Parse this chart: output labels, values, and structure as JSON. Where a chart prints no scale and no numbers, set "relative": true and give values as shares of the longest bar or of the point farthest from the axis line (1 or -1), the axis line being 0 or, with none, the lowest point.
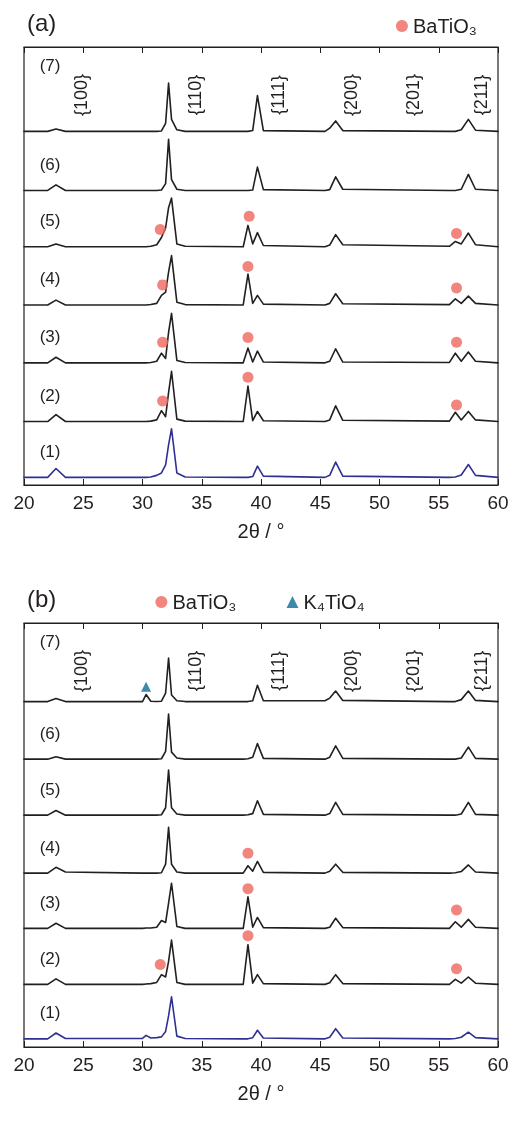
{
  "chart_data": [
    {
      "type": "line",
      "title": "(a)",
      "xlabel": "2θ / °",
      "relative": true,
      "xlim": [
        20,
        60
      ],
      "xticks": [
        20,
        25,
        30,
        35,
        40,
        45,
        50,
        55,
        60
      ],
      "tick_labels": "x",
      "grid": false,
      "legend": "top right",
      "marker": "none",
      "line_style": "solid",
      "x": [
        20,
        22.0,
        22.7,
        23.5,
        30.0,
        30.3,
        30.7,
        31.2,
        31.6,
        31.95,
        32.2,
        32.45,
        32.9,
        33.6,
        38.5,
        38.9,
        39.3,
        39.7,
        40.2,
        45.4,
        45.8,
        46.3,
        46.9,
        55.9,
        56.4,
        56.9,
        57.5,
        58.1,
        60
      ],
      "series": [
        {
          "color": "#231f20",
          "values": [
            0.88,
            0.88,
            0.886,
            0.88,
            0.88,
            0.88,
            0.88,
            0.88,
            0.881,
            0.9,
            1.0,
            0.91,
            0.884,
            0.88,
            0.88,
            0.88,
            0.882,
            0.969,
            0.882,
            0.88,
            0.888,
            0.906,
            0.882,
            0.88,
            0.88,
            0.884,
            0.91,
            0.883,
            0.88
          ]
        },
        {
          "color": "#231f20",
          "values": [
            0.733,
            0.733,
            0.747,
            0.733,
            0.733,
            0.733,
            0.733,
            0.733,
            0.734,
            0.75,
            0.86,
            0.76,
            0.736,
            0.733,
            0.733,
            0.733,
            0.734,
            0.791,
            0.735,
            0.733,
            0.735,
            0.767,
            0.736,
            0.733,
            0.733,
            0.736,
            0.773,
            0.736,
            0.733
          ]
        },
        {
          "color": "#231f20",
          "values": [
            0.593,
            0.593,
            0.6,
            0.593,
            0.593,
            0.593,
            0.594,
            0.598,
            0.616,
            0.64,
            0.69,
            0.714,
            0.6,
            0.594,
            0.593,
            0.646,
            0.6,
            0.628,
            0.596,
            0.593,
            0.597,
            0.623,
            0.598,
            0.594,
            0.606,
            0.6,
            0.627,
            0.598,
            0.593
          ]
        },
        {
          "color": "#231f20",
          "values": [
            0.448,
            0.448,
            0.46,
            0.448,
            0.448,
            0.448,
            0.449,
            0.452,
            0.472,
            0.48,
            0.53,
            0.571,
            0.455,
            0.449,
            0.448,
            0.525,
            0.452,
            0.472,
            0.45,
            0.448,
            0.452,
            0.476,
            0.451,
            0.449,
            0.463,
            0.452,
            0.47,
            0.452,
            0.448
          ]
        },
        {
          "color": "#231f20",
          "values": [
            0.304,
            0.304,
            0.318,
            0.304,
            0.304,
            0.304,
            0.305,
            0.308,
            0.328,
            0.315,
            0.38,
            0.427,
            0.31,
            0.305,
            0.304,
            0.341,
            0.306,
            0.333,
            0.306,
            0.304,
            0.308,
            0.339,
            0.306,
            0.305,
            0.328,
            0.308,
            0.331,
            0.308,
            0.304
          ]
        },
        {
          "color": "#231f20",
          "values": [
            0.158,
            0.158,
            0.175,
            0.158,
            0.158,
            0.158,
            0.159,
            0.162,
            0.185,
            0.17,
            0.23,
            0.283,
            0.164,
            0.159,
            0.158,
            0.246,
            0.16,
            0.183,
            0.16,
            0.158,
            0.162,
            0.197,
            0.161,
            0.159,
            0.181,
            0.162,
            0.183,
            0.162,
            0.158
          ]
        },
        {
          "color": "#2e3192",
          "values": [
            0.019,
            0.019,
            0.041,
            0.019,
            0.019,
            0.019,
            0.02,
            0.024,
            0.03,
            0.05,
            0.1,
            0.14,
            0.03,
            0.02,
            0.019,
            0.019,
            0.021,
            0.047,
            0.022,
            0.019,
            0.024,
            0.057,
            0.022,
            0.019,
            0.02,
            0.025,
            0.051,
            0.024,
            0.019
          ]
        },
        {
          "type": "scatter",
          "name": "BaTiO₃",
          "color": "#f0675f",
          "marker": "circle",
          "x": [
            31.5,
            39.0,
            56.5,
            31.7,
            38.9,
            56.5,
            31.7,
            38.9,
            56.5,
            31.7,
            38.9,
            56.5
          ],
          "values": [
            0.636,
            0.669,
            0.626,
            0.498,
            0.544,
            0.49,
            0.355,
            0.367,
            0.355,
            0.209,
            0.268,
            0.199
          ]
        }
      ],
      "annotations": [
        "(7)",
        "(6)",
        "(5)",
        "(4)",
        "(3)",
        "(2)",
        "(1)",
        "{100}",
        "{110}",
        "{111}",
        "{200}",
        "{201}",
        "{211}"
      ]
    },
    {
      "type": "line",
      "title": "(b)",
      "xlabel": "2θ / °",
      "relative": true,
      "xlim": [
        20,
        60
      ],
      "xticks": [
        20,
        25,
        30,
        35,
        40,
        45,
        50,
        55,
        60
      ],
      "tick_labels": "x",
      "grid": false,
      "legend": "top",
      "marker": "none",
      "line_style": "solid",
      "x": [
        20,
        22.0,
        22.7,
        23.5,
        30.0,
        30.3,
        30.7,
        31.2,
        31.6,
        31.95,
        32.2,
        32.45,
        32.9,
        33.6,
        38.5,
        38.9,
        39.3,
        39.7,
        40.2,
        45.4,
        45.8,
        46.3,
        46.9,
        55.9,
        56.4,
        56.9,
        57.5,
        58.1,
        60
      ],
      "series": [
        {
          "color": "#231f20",
          "values": [
            0.888,
            0.888,
            0.896,
            0.888,
            0.888,
            0.906,
            0.889,
            0.888,
            0.889,
            0.91,
            1.0,
            0.905,
            0.89,
            0.888,
            0.888,
            0.888,
            0.89,
            0.93,
            0.89,
            0.89,
            0.897,
            0.915,
            0.891,
            0.888,
            0.888,
            0.893,
            0.915,
            0.891,
            0.888
          ]
        },
        {
          "color": "#231f20",
          "values": [
            0.74,
            0.74,
            0.746,
            0.74,
            0.74,
            0.74,
            0.74,
            0.74,
            0.741,
            0.76,
            0.856,
            0.758,
            0.743,
            0.74,
            0.74,
            0.741,
            0.745,
            0.78,
            0.742,
            0.74,
            0.745,
            0.774,
            0.742,
            0.74,
            0.74,
            0.743,
            0.771,
            0.742,
            0.74
          ]
        },
        {
          "color": "#231f20",
          "values": [
            0.596,
            0.596,
            0.608,
            0.596,
            0.596,
            0.596,
            0.596,
            0.596,
            0.597,
            0.615,
            0.712,
            0.615,
            0.599,
            0.596,
            0.596,
            0.597,
            0.6,
            0.633,
            0.598,
            0.596,
            0.6,
            0.629,
            0.598,
            0.596,
            0.596,
            0.599,
            0.629,
            0.598,
            0.596
          ]
        },
        {
          "color": "#231f20",
          "values": [
            0.447,
            0.447,
            0.462,
            0.45,
            0.447,
            0.447,
            0.447,
            0.447,
            0.448,
            0.47,
            0.565,
            0.47,
            0.45,
            0.447,
            0.447,
            0.466,
            0.452,
            0.477,
            0.449,
            0.447,
            0.452,
            0.47,
            0.449,
            0.447,
            0.448,
            0.451,
            0.468,
            0.45,
            0.447
          ]
        },
        {
          "color": "#231f20",
          "values": [
            0.305,
            0.305,
            0.318,
            0.305,
            0.305,
            0.306,
            0.306,
            0.308,
            0.325,
            0.32,
            0.37,
            0.421,
            0.31,
            0.305,
            0.305,
            0.386,
            0.308,
            0.333,
            0.307,
            0.305,
            0.308,
            0.331,
            0.307,
            0.305,
            0.322,
            0.308,
            0.328,
            0.308,
            0.305
          ]
        },
        {
          "color": "#231f20",
          "values": [
            0.161,
            0.161,
            0.175,
            0.161,
            0.161,
            0.162,
            0.163,
            0.166,
            0.186,
            0.18,
            0.22,
            0.275,
            0.166,
            0.161,
            0.161,
            0.263,
            0.164,
            0.186,
            0.163,
            0.161,
            0.165,
            0.186,
            0.163,
            0.161,
            0.174,
            0.164,
            0.18,
            0.164,
            0.161
          ]
        },
        {
          "color": "#2e3192",
          "values": [
            0.021,
            0.021,
            0.036,
            0.022,
            0.022,
            0.03,
            0.023,
            0.024,
            0.026,
            0.04,
            0.08,
            0.129,
            0.028,
            0.022,
            0.021,
            0.021,
            0.024,
            0.043,
            0.023,
            0.021,
            0.025,
            0.047,
            0.023,
            0.021,
            0.022,
            0.025,
            0.038,
            0.024,
            0.021
          ]
        },
        {
          "type": "scatter",
          "name": "BaTiO₃",
          "color": "#f0675f",
          "marker": "circle",
          "x": [
            38.9,
            38.9,
            56.5,
            31.5,
            38.9,
            56.5
          ],
          "values": [
            0.498,
            0.407,
            0.352,
            0.212,
            0.286,
            0.201
          ]
        },
        {
          "type": "scatter",
          "name": "K₄TiO₄",
          "color": "#0f6b96",
          "marker": "triangle",
          "x": [
            30.3
          ],
          "values": [
            0.926
          ]
        }
      ],
      "annotations": [
        "(7)",
        "(6)",
        "(5)",
        "(4)",
        "(3)",
        "(2)",
        "(1)",
        "{100}",
        "{110}",
        "{111}",
        "{200}",
        "{201}",
        "{211}"
      ]
    }
  ]
}
